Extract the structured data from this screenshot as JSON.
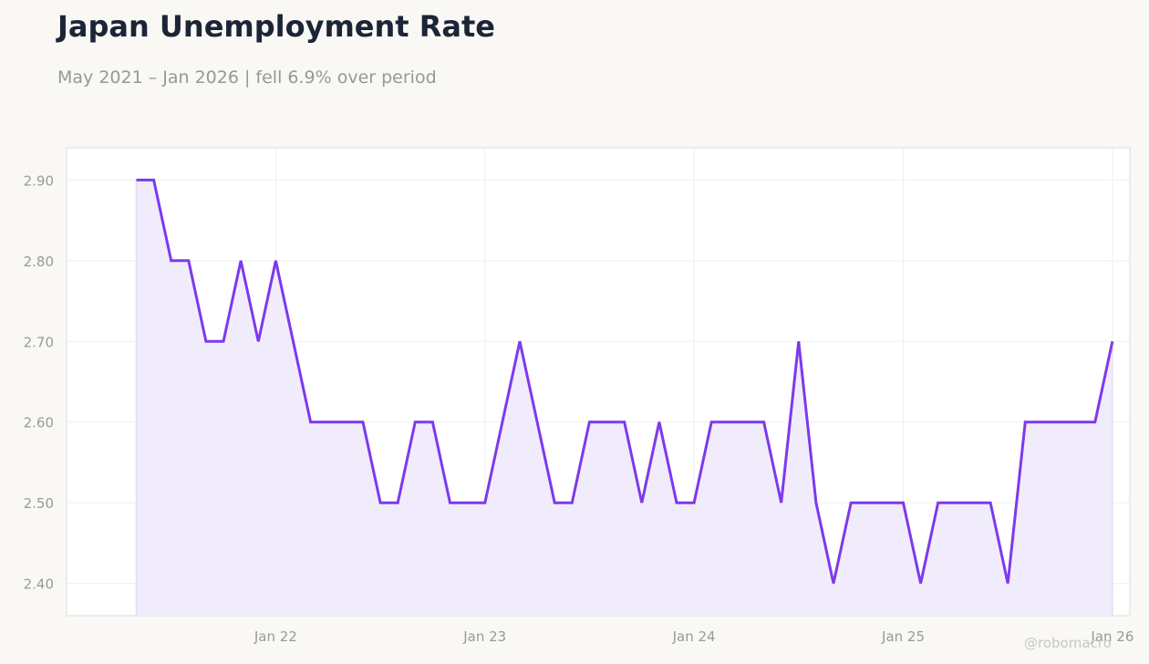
{
  "header": {
    "title": "Japan Unemployment Rate",
    "subtitle": "May 2021 – Jan 2026 | fell 6.9% over period"
  },
  "watermark": "@robomacro",
  "colors": {
    "line": "#7c3aed",
    "fill": "#f1ecfc",
    "grid": "#efefef",
    "tick_text": "#999999",
    "background": "#f9f8f5",
    "plot_background": "#ffffff"
  },
  "chart_data": {
    "type": "area",
    "title": "Japan Unemployment Rate",
    "subtitle": "May 2021 – Jan 2026 | fell 6.9% over period",
    "xlabel": "",
    "ylabel": "",
    "x_start": "2021-05",
    "x_end": "2026-01",
    "xlim": [
      "2021-01",
      "2026-02"
    ],
    "ylim": [
      2.36,
      2.94
    ],
    "grid": true,
    "legend": "none",
    "x_ticks": [
      {
        "date": "2022-01",
        "label": "Jan 22"
      },
      {
        "date": "2023-01",
        "label": "Jan 23"
      },
      {
        "date": "2024-01",
        "label": "Jan 24"
      },
      {
        "date": "2025-01",
        "label": "Jan 25"
      },
      {
        "date": "2026-01",
        "label": "Jan 26"
      }
    ],
    "y_ticks": [
      {
        "value": 2.4,
        "label": "2.40"
      },
      {
        "value": 2.5,
        "label": "2.50"
      },
      {
        "value": 2.6,
        "label": "2.60"
      },
      {
        "value": 2.7,
        "label": "2.70"
      },
      {
        "value": 2.8,
        "label": "2.80"
      },
      {
        "value": 2.9,
        "label": "2.90"
      }
    ],
    "series": [
      {
        "x": [
          "2021-05",
          "2021-06",
          "2021-07",
          "2021-08",
          "2021-09",
          "2021-10",
          "2021-11",
          "2021-12",
          "2022-01",
          "2022-02",
          "2022-03",
          "2022-04",
          "2022-05",
          "2022-06",
          "2022-07",
          "2022-08",
          "2022-09",
          "2022-10",
          "2022-11",
          "2022-12",
          "2023-01",
          "2023-02",
          "2023-03",
          "2023-04",
          "2023-05",
          "2023-06",
          "2023-07",
          "2023-08",
          "2023-09",
          "2023-10",
          "2023-11",
          "2023-12",
          "2024-01",
          "2024-02",
          "2024-03",
          "2024-04",
          "2024-05",
          "2024-06",
          "2024-07",
          "2024-08",
          "2024-09",
          "2024-10",
          "2024-11",
          "2024-12",
          "2025-01",
          "2025-02",
          "2025-03",
          "2025-04",
          "2025-05",
          "2025-06",
          "2025-07",
          "2025-08",
          "2025-09",
          "2025-10",
          "2025-11",
          "2025-12",
          "2026-01"
        ],
        "values": [
          2.9,
          2.9,
          2.8,
          2.8,
          2.7,
          2.7,
          2.8,
          2.7,
          2.8,
          2.7,
          2.6,
          2.6,
          2.6,
          2.6,
          2.5,
          2.5,
          2.6,
          2.6,
          2.5,
          2.5,
          2.5,
          2.6,
          2.7,
          2.6,
          2.5,
          2.5,
          2.6,
          2.6,
          2.6,
          2.5,
          2.6,
          2.5,
          2.5,
          2.6,
          2.6,
          2.6,
          2.6,
          2.5,
          2.7,
          2.5,
          2.4,
          2.5,
          2.5,
          2.5,
          2.5,
          2.4,
          2.5,
          2.5,
          2.5,
          2.5,
          2.4,
          2.6,
          2.6,
          2.6,
          2.6,
          2.6,
          2.7
        ]
      }
    ]
  }
}
